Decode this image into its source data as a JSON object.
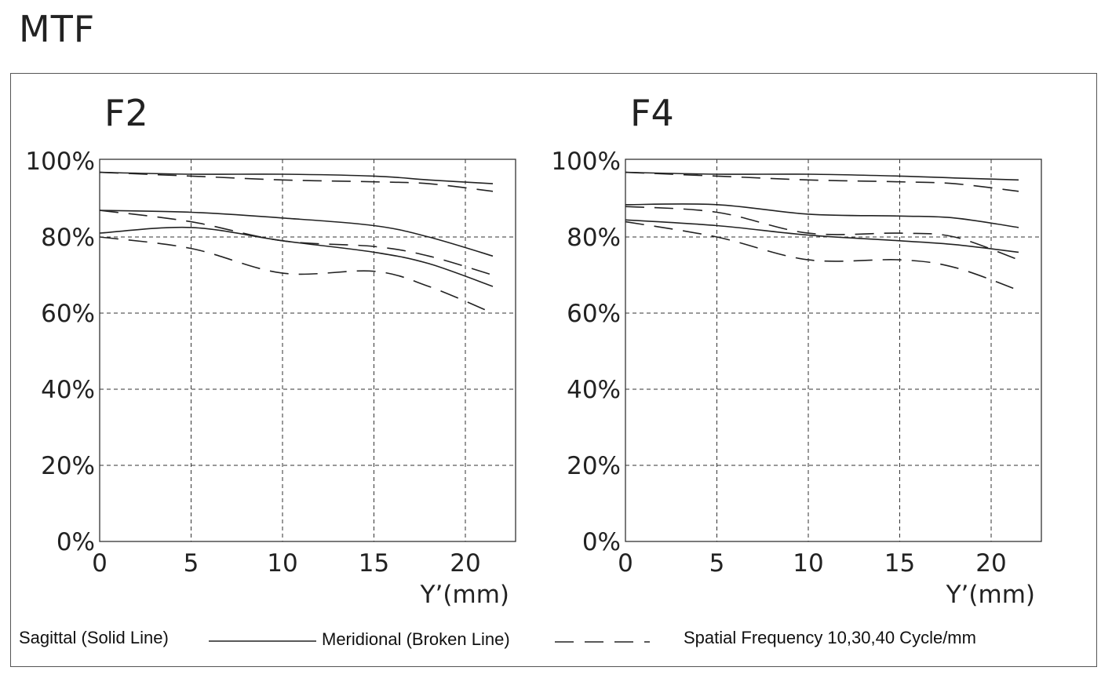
{
  "title": "MTF",
  "legend": {
    "sagittal": "Sagittal (Solid Line)",
    "meridional": "Meridional (Broken Line)",
    "frequency": "Spatial Frequency 10,30,40 Cycle/mm"
  },
  "chart_data": [
    {
      "type": "line",
      "title": "F2",
      "xlabel": "Y’(mm)",
      "ylabel": "",
      "xlim": [
        0,
        23
      ],
      "ylim": [
        0,
        100
      ],
      "xticks": [
        "0",
        "5",
        "10",
        "15",
        "20"
      ],
      "yticks": [
        "0%",
        "20%",
        "40%",
        "60%",
        "80%",
        "100%"
      ],
      "grid": true,
      "series": [
        {
          "style": "solid",
          "x": [
            0,
            5,
            10,
            15,
            18,
            21.5
          ],
          "values": [
            97,
            96.5,
            96.5,
            96,
            95,
            94
          ]
        },
        {
          "style": "dashed",
          "x": [
            0,
            5,
            10,
            15,
            18,
            21.5
          ],
          "values": [
            97,
            96,
            95,
            94.5,
            94,
            92
          ]
        },
        {
          "style": "solid",
          "x": [
            0,
            5,
            10,
            15,
            18,
            21.5
          ],
          "values": [
            87,
            86.5,
            85,
            83,
            80,
            75
          ]
        },
        {
          "style": "dashed",
          "x": [
            0,
            5,
            10,
            15,
            18,
            21.5
          ],
          "values": [
            87,
            84,
            79,
            77.5,
            75,
            70
          ]
        },
        {
          "style": "solid",
          "x": [
            0,
            5,
            10,
            15,
            18,
            21.5
          ],
          "values": [
            81,
            82.5,
            79,
            76,
            73,
            67
          ]
        },
        {
          "style": "dashed",
          "x": [
            0,
            5,
            10,
            15,
            18,
            21.5
          ],
          "values": [
            80,
            77,
            70.5,
            71,
            67,
            60
          ]
        }
      ]
    },
    {
      "type": "line",
      "title": "F4",
      "xlabel": "Y’(mm)",
      "ylabel": "",
      "xlim": [
        0,
        23
      ],
      "ylim": [
        0,
        100
      ],
      "xticks": [
        "0",
        "5",
        "10",
        "15",
        "20"
      ],
      "yticks": [
        "0%",
        "20%",
        "40%",
        "60%",
        "80%",
        "100%"
      ],
      "grid": true,
      "series": [
        {
          "style": "solid",
          "x": [
            0,
            5,
            10,
            15,
            18,
            21.5
          ],
          "values": [
            97,
            96.5,
            96.5,
            96,
            95.5,
            95
          ]
        },
        {
          "style": "dashed",
          "x": [
            0,
            5,
            10,
            15,
            18,
            21.5
          ],
          "values": [
            97,
            96,
            95,
            94.5,
            94,
            92
          ]
        },
        {
          "style": "solid",
          "x": [
            0,
            5,
            10,
            15,
            18,
            21.5
          ],
          "values": [
            88.5,
            88.5,
            86,
            85.5,
            85,
            82.5
          ]
        },
        {
          "style": "dashed",
          "x": [
            0,
            5,
            10,
            15,
            18,
            21.5
          ],
          "values": [
            88,
            86.5,
            81,
            81,
            80,
            74
          ]
        },
        {
          "style": "solid",
          "x": [
            0,
            5,
            10,
            15,
            18,
            21.5
          ],
          "values": [
            84.5,
            83,
            80.5,
            79,
            78,
            76
          ]
        },
        {
          "style": "dashed",
          "x": [
            0,
            5,
            10,
            15,
            18,
            21.5
          ],
          "values": [
            84,
            80,
            74,
            74,
            72,
            66
          ]
        }
      ]
    }
  ]
}
